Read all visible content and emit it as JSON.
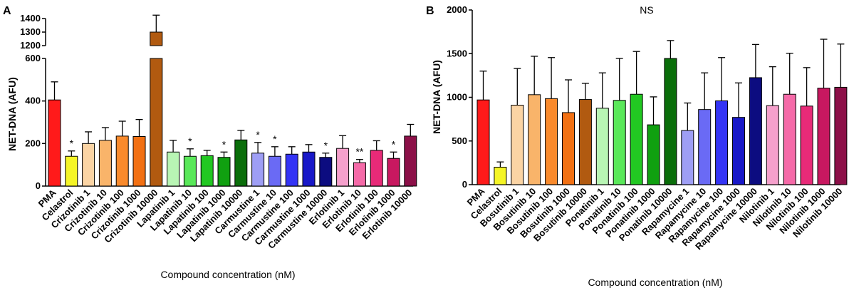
{
  "chart_data": [
    {
      "type": "bar",
      "panel_label": "A",
      "title": "",
      "xlabel": "Compound concentration (nM)",
      "ylabel": "NET-DNA (AFU)",
      "y_axis_break": {
        "lower": [
          0,
          600
        ],
        "upper": [
          1200,
          1400
        ]
      },
      "yticks_lower": [
        0,
        200,
        400,
        600
      ],
      "yticks_upper": [
        1200,
        1300,
        1400
      ],
      "categories": [
        "PMA",
        "Celastrol",
        "Crizotinib 1",
        "Crizotinib 10",
        "Crizotinib 100",
        "Crizotinib 1000",
        "Crizotinib 10000",
        "Lapatinib 1",
        "Lapatinib 10",
        "Lapatinib 100",
        "Lapatinib 1000",
        "Lapatinib 10000",
        "Carmustine 1",
        "Carmustine 10",
        "Carmustine 100",
        "Carmustine 1000",
        "Carmustine 10000",
        "Erlotinib 1",
        "Erlotinib 10",
        "Erlotinib 100",
        "Erlotinib 1000",
        "Erlotinib 10000"
      ],
      "values": [
        405,
        140,
        200,
        215,
        235,
        233,
        1300,
        160,
        140,
        143,
        135,
        217,
        155,
        140,
        150,
        160,
        135,
        177,
        110,
        168,
        130,
        235
      ],
      "errors": [
        85,
        25,
        55,
        60,
        70,
        80,
        125,
        55,
        35,
        25,
        25,
        45,
        50,
        45,
        35,
        35,
        20,
        60,
        15,
        45,
        30,
        55
      ],
      "annotations": [
        "",
        "*",
        "",
        "",
        "",
        "",
        "",
        "",
        "*",
        "",
        "*",
        "",
        "*",
        "*",
        "",
        "",
        "*",
        "",
        "**",
        "",
        "*",
        ""
      ],
      "colors": [
        "#ff1a1a",
        "#f5f526",
        "#fbd4a4",
        "#f9b46a",
        "#f98a2c",
        "#f27013",
        "#b15a10",
        "#b8f5b4",
        "#5ae85a",
        "#22c822",
        "#10a010",
        "#0a6e0a",
        "#9e9ef5",
        "#6a6af5",
        "#3434f5",
        "#1818c8",
        "#0c0c80",
        "#f5a0cc",
        "#f56aa8",
        "#e82a78",
        "#c81860",
        "#8c1048"
      ]
    },
    {
      "type": "bar",
      "panel_label": "B",
      "title": "NS",
      "xlabel": "Compound concentration (nM)",
      "ylabel": "NET-DNA (AFU)",
      "ylim": [
        0,
        2000
      ],
      "yticks": [
        0,
        500,
        1000,
        1500,
        2000
      ],
      "categories": [
        "PMA",
        "Celastrol",
        "Bosutinib 1",
        "Bosutinib 10",
        "Bosutinib 100",
        "Bosutinib 1000",
        "Bosutinib 10000",
        "Ponatinib 1",
        "Ponatinib 10",
        "Ponatinib 100",
        "Ponatinib 1000",
        "Ponatinib 10000",
        "Rapamycine 1",
        "Rapamycine 10",
        "Rapamycine 100",
        "Rapamycine 1000",
        "Rapamycine 10000",
        "Nilotinib 1",
        "Nilotinib 10",
        "Nilotinib 100",
        "Nilotinib 1000",
        "Nilotinib 10000"
      ],
      "values": [
        970,
        200,
        910,
        1030,
        985,
        825,
        975,
        875,
        965,
        1035,
        685,
        1445,
        620,
        860,
        960,
        770,
        1225,
        905,
        1035,
        900,
        1105,
        1115
      ],
      "errors": [
        330,
        60,
        420,
        440,
        470,
        375,
        185,
        405,
        480,
        490,
        320,
        205,
        315,
        420,
        495,
        395,
        380,
        445,
        470,
        440,
        560,
        495
      ],
      "colors": [
        "#ff1a1a",
        "#f5f526",
        "#fbd4a4",
        "#f9b46a",
        "#f98a2c",
        "#f27013",
        "#b15a10",
        "#b8f5b4",
        "#5ae85a",
        "#22c822",
        "#10a010",
        "#0a6e0a",
        "#9e9ef5",
        "#6a6af5",
        "#3434f5",
        "#1818c8",
        "#0c0c80",
        "#f5a0cc",
        "#f56aa8",
        "#e82a78",
        "#c81860",
        "#8c1048"
      ]
    }
  ]
}
